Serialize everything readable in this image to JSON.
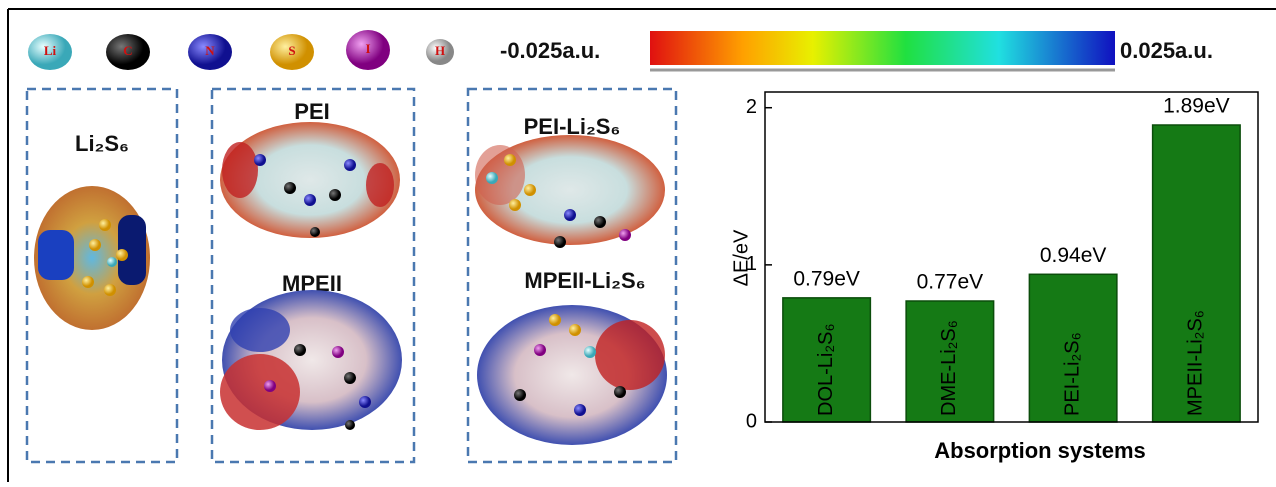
{
  "atoms": [
    "Li",
    "C",
    "N",
    "S",
    "I",
    "H"
  ],
  "scale": {
    "min_label": "-0.025a.u.",
    "max_label": "0.025a.u."
  },
  "panels": [
    "Li₂S₆",
    "PEI",
    "MPEII",
    "PEI-Li₂S₆",
    "MPEII-Li₂S₆"
  ],
  "chart_data": {
    "type": "bar",
    "categories": [
      "DOL-Li₂S₆",
      "DME-Li₂S₆",
      "PEI-Li₂S₆",
      "MPEII-Li₂S₆"
    ],
    "values": [
      0.79,
      0.77,
      0.94,
      1.89
    ],
    "value_labels": [
      "0.79eV",
      "0.77eV",
      "0.94eV",
      "1.89eV"
    ],
    "color": "#157a15",
    "ylim": [
      0,
      2.1
    ],
    "yticks": [
      0,
      1,
      2
    ],
    "y_label": "ΔE/eV",
    "x_label": "Absorption systems"
  }
}
